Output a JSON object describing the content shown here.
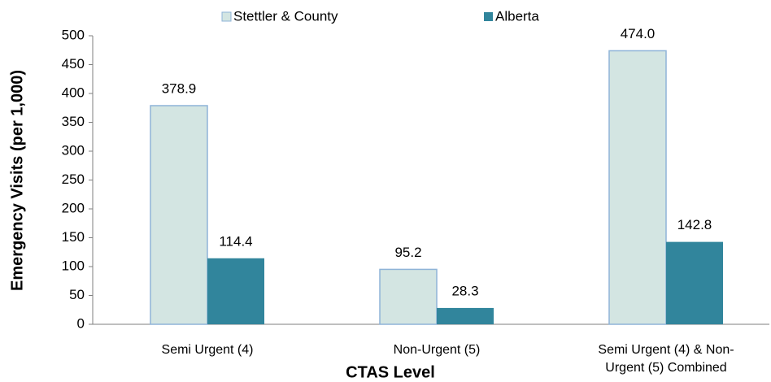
{
  "chart_data": {
    "type": "bar",
    "x_label": "CTAS Level",
    "y_label": "Emergency Visits (per 1,000)",
    "categories": [
      "Semi Urgent (4)",
      "Non-Urgent (5)",
      "Semi Urgent (4) & Non-Urgent (5) Combined"
    ],
    "series": [
      {
        "name": "Stettler & County",
        "color": "#d3e5e2",
        "values": [
          378.9,
          95.2,
          474.0
        ],
        "value_labels": [
          "378.9",
          "95.2",
          "474.0"
        ]
      },
      {
        "name": "Alberta",
        "color": "#31859c",
        "values": [
          114.4,
          28.3,
          142.8
        ],
        "value_labels": [
          "114.4",
          "28.3",
          "142.8"
        ]
      }
    ],
    "ylim": [
      0,
      500
    ],
    "yticks": [
      0,
      50,
      100,
      150,
      200,
      250,
      300,
      350,
      400,
      450,
      500
    ],
    "legend": "top"
  }
}
